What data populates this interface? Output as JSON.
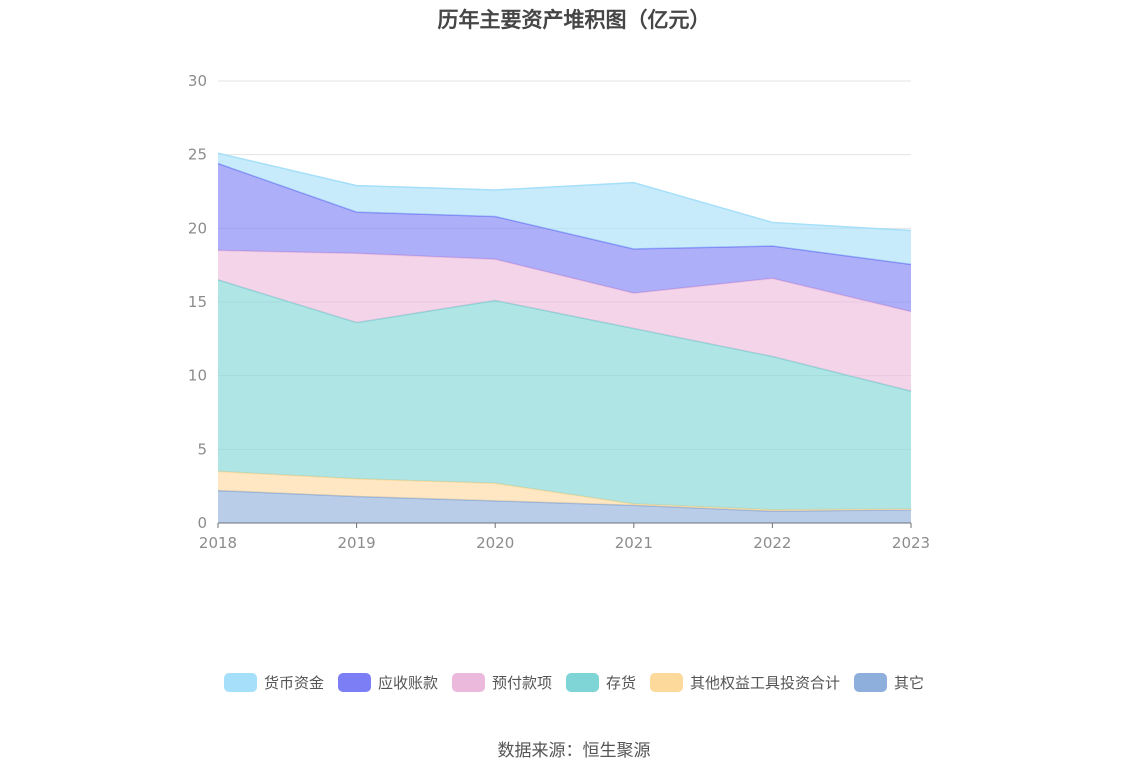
{
  "page": {
    "source": "数据来源：恒生聚源"
  },
  "chart_data": {
    "type": "area",
    "stacked": true,
    "title": "历年主要资产堆积图（亿元）",
    "categories": [
      "2018",
      "2019",
      "2020",
      "2021",
      "2022",
      "2023"
    ],
    "ylim": [
      0,
      30
    ],
    "yticks": [
      "0",
      "5",
      "10",
      "15",
      "20",
      "25",
      "30"
    ],
    "grid": true,
    "legend_position": "bottom",
    "series": [
      {
        "name": "其它",
        "color": "#8eaedc",
        "values": [
          2.2,
          1.8,
          1.5,
          1.2,
          0.8,
          0.9
        ]
      },
      {
        "name": "其他权益工具投资合计",
        "color": "#fdd99c",
        "values": [
          1.3,
          1.2,
          1.2,
          0.1,
          0.1,
          0.05
        ]
      },
      {
        "name": "存货",
        "color": "#7fd5d5",
        "values": [
          13.0,
          10.6,
          12.4,
          11.9,
          10.4,
          8.0
        ]
      },
      {
        "name": "预付款项",
        "color": "#ebb9dc",
        "values": [
          2.0,
          4.7,
          2.8,
          2.4,
          5.3,
          5.4
        ]
      },
      {
        "name": "应收账款",
        "color": "#7b7ef4",
        "values": [
          5.9,
          2.8,
          2.9,
          3.0,
          2.2,
          3.2
        ]
      },
      {
        "name": "货币资金",
        "color": "#a5dff9",
        "values": [
          0.7,
          1.8,
          1.8,
          4.5,
          1.6,
          2.3
        ]
      }
    ],
    "legend_order": [
      "货币资金",
      "应收账款",
      "预付款项",
      "存货",
      "其他权益工具投资合计",
      "其它"
    ]
  }
}
